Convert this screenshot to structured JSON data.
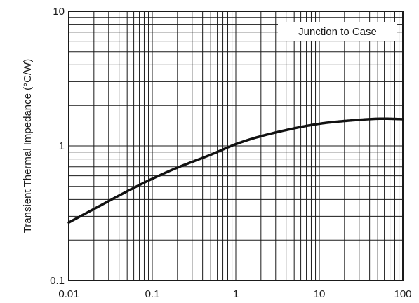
{
  "chart_data": {
    "type": "line",
    "title": "",
    "xlabel": "",
    "ylabel": "Transient Thermal Impedance (°C/W)",
    "x_scale": "log",
    "y_scale": "log",
    "xlim": [
      0.01,
      100
    ],
    "ylim": [
      0.1,
      10
    ],
    "grid": true,
    "x_ticks": [
      "0.01",
      "0.1",
      "1",
      "10",
      "100"
    ],
    "y_ticks": [
      "0.1",
      "1",
      "10"
    ],
    "legend": {
      "text": "Junction to Case",
      "placement": "top-right"
    },
    "series": [
      {
        "x": [
          0.01,
          0.02,
          0.05,
          0.1,
          0.2,
          0.5,
          1,
          2,
          5,
          10,
          20,
          50,
          100
        ],
        "y": [
          0.27,
          0.34,
          0.46,
          0.57,
          0.69,
          0.86,
          1.03,
          1.18,
          1.35,
          1.46,
          1.53,
          1.59,
          1.58
        ]
      }
    ]
  }
}
